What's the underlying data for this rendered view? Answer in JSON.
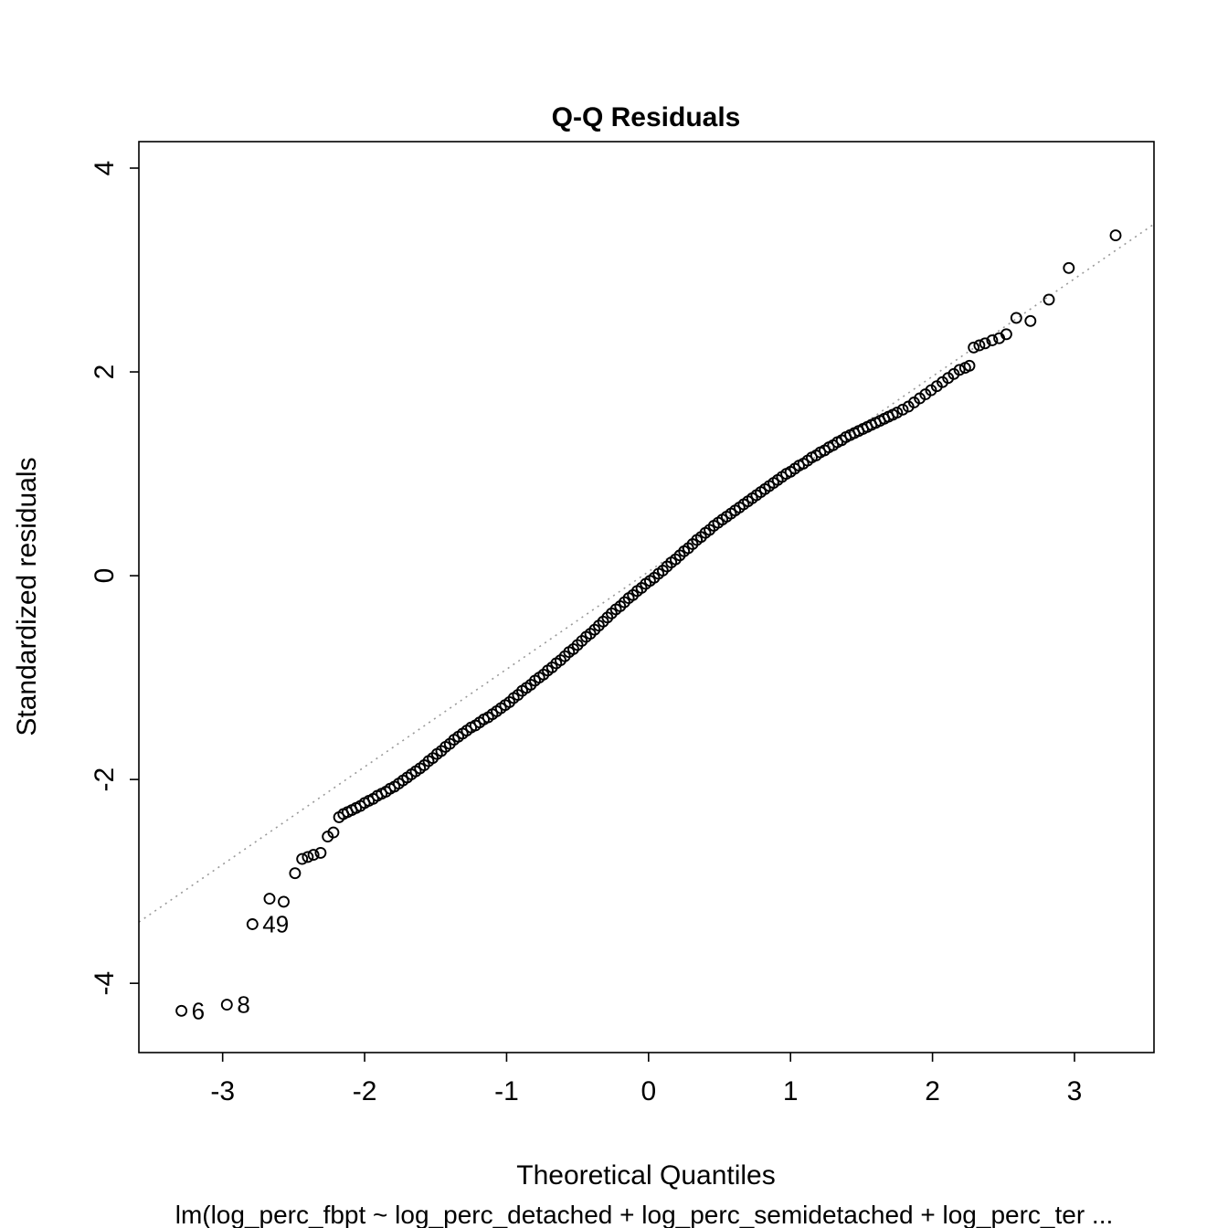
{
  "title": "Q-Q Residuals",
  "xlabel": "Theoretical Quantiles",
  "sublabel": "lm(log_perc_fbpt ~ log_perc_detached + log_perc_semidetached + log_perc_ter ...",
  "ylabel": "Standardized residuals",
  "colors": {
    "point": "#000000",
    "reference_line": "#999999",
    "text": "#000000",
    "background": "#ffffff",
    "box": "#000000"
  },
  "chart_data": {
    "type": "scatter",
    "title": "Q-Q Residuals",
    "xlabel": "Theoretical Quantiles",
    "ylabel": "Standardized residuals",
    "subtitle": "lm(log_perc_fbpt ~ log_perc_detached + log_perc_semidetached + log_perc_ter ...",
    "xlim": [
      -3.59,
      3.56
    ],
    "ylim": [
      -4.68,
      4.26
    ],
    "x_ticks": [
      -3,
      -2,
      -1,
      0,
      1,
      2,
      3
    ],
    "y_ticks": [
      -4,
      -2,
      0,
      2,
      4
    ],
    "grid": false,
    "legend": "none",
    "reference_line": {
      "slope": 0.958,
      "intercept": 0.04,
      "style": "dotted"
    },
    "labeled_points": [
      {
        "label": "6",
        "x": -3.29,
        "y": -4.27
      },
      {
        "label": "8",
        "x": -2.97,
        "y": -4.21
      },
      {
        "label": "49",
        "x": -2.79,
        "y": -3.42
      }
    ],
    "points": [
      [
        -3.29,
        -4.27
      ],
      [
        -2.97,
        -4.21
      ],
      [
        -2.79,
        -3.42
      ],
      [
        -2.67,
        -3.17
      ],
      [
        -2.57,
        -3.2
      ],
      [
        -2.49,
        -2.92
      ],
      [
        -2.44,
        -2.78
      ],
      [
        -2.4,
        -2.76
      ],
      [
        -2.36,
        -2.74
      ],
      [
        -2.31,
        -2.72
      ],
      [
        -2.26,
        -2.56
      ],
      [
        -2.22,
        -2.52
      ],
      [
        -2.18,
        -2.37
      ],
      [
        -2.15,
        -2.34
      ],
      [
        -2.12,
        -2.32
      ],
      [
        -2.09,
        -2.3
      ],
      [
        -2.06,
        -2.28
      ],
      [
        -2.03,
        -2.26
      ],
      [
        -2.0,
        -2.23
      ],
      [
        -1.97,
        -2.21
      ],
      [
        -1.94,
        -2.19
      ],
      [
        -1.91,
        -2.16
      ],
      [
        -1.88,
        -2.14
      ],
      [
        -1.85,
        -2.12
      ],
      [
        -1.82,
        -2.09
      ],
      [
        -1.79,
        -2.07
      ],
      [
        -1.76,
        -2.04
      ],
      [
        -1.73,
        -2.01
      ],
      [
        -1.7,
        -1.98
      ],
      [
        -1.67,
        -1.95
      ],
      [
        -1.64,
        -1.92
      ],
      [
        -1.61,
        -1.89
      ],
      [
        -1.58,
        -1.86
      ],
      [
        -1.55,
        -1.82
      ],
      [
        -1.52,
        -1.79
      ],
      [
        -1.49,
        -1.75
      ],
      [
        -1.46,
        -1.72
      ],
      [
        -1.43,
        -1.68
      ],
      [
        -1.4,
        -1.65
      ],
      [
        -1.37,
        -1.61
      ],
      [
        -1.34,
        -1.58
      ],
      [
        -1.31,
        -1.55
      ],
      [
        -1.28,
        -1.52
      ],
      [
        -1.25,
        -1.49
      ],
      [
        -1.22,
        -1.47
      ],
      [
        -1.19,
        -1.44
      ],
      [
        -1.16,
        -1.41
      ],
      [
        -1.13,
        -1.39
      ],
      [
        -1.1,
        -1.36
      ],
      [
        -1.07,
        -1.33
      ],
      [
        -1.04,
        -1.3
      ],
      [
        -1.01,
        -1.27
      ],
      [
        -0.98,
        -1.24
      ],
      [
        -0.95,
        -1.2
      ],
      [
        -0.92,
        -1.17
      ],
      [
        -0.89,
        -1.13
      ],
      [
        -0.86,
        -1.1
      ],
      [
        -0.83,
        -1.07
      ],
      [
        -0.8,
        -1.03
      ],
      [
        -0.77,
        -1.0
      ],
      [
        -0.74,
        -0.97
      ],
      [
        -0.71,
        -0.93
      ],
      [
        -0.68,
        -0.9
      ],
      [
        -0.65,
        -0.86
      ],
      [
        -0.62,
        -0.83
      ],
      [
        -0.59,
        -0.79
      ],
      [
        -0.56,
        -0.75
      ],
      [
        -0.53,
        -0.72
      ],
      [
        -0.5,
        -0.68
      ],
      [
        -0.47,
        -0.64
      ],
      [
        -0.44,
        -0.6
      ],
      [
        -0.41,
        -0.57
      ],
      [
        -0.38,
        -0.53
      ],
      [
        -0.35,
        -0.49
      ],
      [
        -0.32,
        -0.45
      ],
      [
        -0.29,
        -0.41
      ],
      [
        -0.26,
        -0.37
      ],
      [
        -0.23,
        -0.33
      ],
      [
        -0.2,
        -0.3
      ],
      [
        -0.17,
        -0.26
      ],
      [
        -0.14,
        -0.22
      ],
      [
        -0.11,
        -0.19
      ],
      [
        -0.08,
        -0.15
      ],
      [
        -0.05,
        -0.12
      ],
      [
        -0.02,
        -0.08
      ],
      [
        0.01,
        -0.05
      ],
      [
        0.04,
        -0.02
      ],
      [
        0.07,
        0.02
      ],
      [
        0.1,
        0.05
      ],
      [
        0.13,
        0.09
      ],
      [
        0.16,
        0.13
      ],
      [
        0.19,
        0.16
      ],
      [
        0.22,
        0.2
      ],
      [
        0.25,
        0.24
      ],
      [
        0.28,
        0.27
      ],
      [
        0.31,
        0.31
      ],
      [
        0.34,
        0.35
      ],
      [
        0.37,
        0.38
      ],
      [
        0.4,
        0.42
      ],
      [
        0.43,
        0.45
      ],
      [
        0.46,
        0.49
      ],
      [
        0.49,
        0.52
      ],
      [
        0.52,
        0.55
      ],
      [
        0.55,
        0.58
      ],
      [
        0.58,
        0.61
      ],
      [
        0.61,
        0.64
      ],
      [
        0.64,
        0.67
      ],
      [
        0.67,
        0.7
      ],
      [
        0.7,
        0.73
      ],
      [
        0.73,
        0.76
      ],
      [
        0.76,
        0.79
      ],
      [
        0.79,
        0.82
      ],
      [
        0.82,
        0.85
      ],
      [
        0.85,
        0.88
      ],
      [
        0.88,
        0.91
      ],
      [
        0.91,
        0.94
      ],
      [
        0.94,
        0.97
      ],
      [
        0.97,
        1.0
      ],
      [
        1.0,
        1.02
      ],
      [
        1.03,
        1.05
      ],
      [
        1.06,
        1.08
      ],
      [
        1.09,
        1.1
      ],
      [
        1.12,
        1.13
      ],
      [
        1.15,
        1.16
      ],
      [
        1.18,
        1.18
      ],
      [
        1.21,
        1.21
      ],
      [
        1.24,
        1.23
      ],
      [
        1.27,
        1.26
      ],
      [
        1.3,
        1.28
      ],
      [
        1.33,
        1.31
      ],
      [
        1.36,
        1.33
      ],
      [
        1.39,
        1.36
      ],
      [
        1.42,
        1.38
      ],
      [
        1.45,
        1.4
      ],
      [
        1.48,
        1.42
      ],
      [
        1.51,
        1.44
      ],
      [
        1.54,
        1.46
      ],
      [
        1.57,
        1.48
      ],
      [
        1.6,
        1.5
      ],
      [
        1.63,
        1.52
      ],
      [
        1.66,
        1.54
      ],
      [
        1.69,
        1.56
      ],
      [
        1.72,
        1.58
      ],
      [
        1.75,
        1.6
      ],
      [
        1.79,
        1.63
      ],
      [
        1.83,
        1.66
      ],
      [
        1.87,
        1.7
      ],
      [
        1.91,
        1.74
      ],
      [
        1.95,
        1.78
      ],
      [
        1.99,
        1.82
      ],
      [
        2.03,
        1.86
      ],
      [
        2.07,
        1.9
      ],
      [
        2.11,
        1.94
      ],
      [
        2.15,
        1.98
      ],
      [
        2.19,
        2.02
      ],
      [
        2.23,
        2.04
      ],
      [
        2.26,
        2.06
      ],
      [
        2.29,
        2.24
      ],
      [
        2.33,
        2.26
      ],
      [
        2.37,
        2.28
      ],
      [
        2.42,
        2.31
      ],
      [
        2.47,
        2.33
      ],
      [
        2.52,
        2.37
      ],
      [
        2.59,
        2.53
      ],
      [
        2.69,
        2.5
      ],
      [
        2.82,
        2.71
      ],
      [
        2.96,
        3.02
      ],
      [
        3.29,
        3.34
      ]
    ]
  }
}
